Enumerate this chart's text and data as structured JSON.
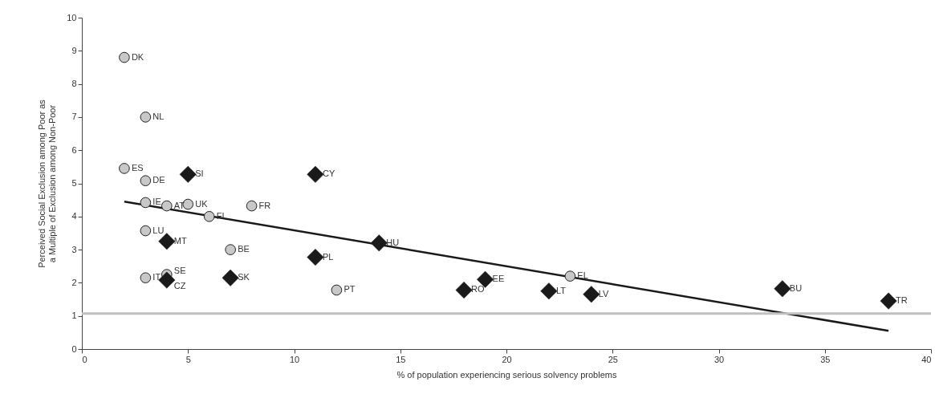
{
  "chart_data": {
    "type": "scatter",
    "xlabel": "% of population experiencing serious solvency problems",
    "ylabel": "Perceived Social Exclusion among Poor as a Multiple of Exclusion among Non-Poor",
    "xlim": [
      0,
      40
    ],
    "xticks": [
      0,
      5,
      10,
      15,
      20,
      25,
      30,
      35,
      40
    ],
    "ylim": [
      0,
      10
    ],
    "yticks": [
      0,
      1,
      2,
      3,
      4,
      5,
      6,
      7,
      8,
      9,
      10
    ],
    "grid": false,
    "series": [
      {
        "type": "line",
        "color": "#1a1a1a",
        "x": [
          2,
          38
        ],
        "values": [
          4.45,
          0.55
        ]
      },
      {
        "marker": "circle",
        "color": "#c8c8c8",
        "x": [
          2,
          3,
          2,
          3,
          3,
          4,
          5,
          6,
          8,
          3,
          7,
          3,
          4,
          12,
          23
        ],
        "values": [
          8.8,
          7.0,
          5.45,
          5.08,
          4.42,
          4.32,
          4.37,
          4.0,
          4.32,
          3.57,
          3.0,
          2.15,
          2.25,
          1.78,
          2.2
        ]
      },
      {
        "marker": "diamond",
        "color": "#1a1a1a",
        "x": [
          5,
          11,
          4,
          14,
          11,
          7,
          4,
          18,
          19,
          22,
          24,
          33,
          38
        ],
        "values": [
          5.27,
          5.27,
          3.25,
          3.2,
          2.77,
          2.15,
          2.08,
          1.78,
          2.1,
          1.75,
          1.65,
          1.82,
          1.45
        ]
      }
    ],
    "ref_lines": [
      {
        "axis": "y",
        "value": 1.07,
        "color": "#c0c0c0"
      }
    ],
    "annotations": [
      {
        "text": "DK",
        "x": 2,
        "y": 8.8
      },
      {
        "text": "NL",
        "x": 3,
        "y": 7.0
      },
      {
        "text": "ES",
        "x": 2,
        "y": 5.45
      },
      {
        "text": "DE",
        "x": 3,
        "y": 5.08
      },
      {
        "text": "IE",
        "x": 3,
        "y": 4.42
      },
      {
        "text": "AT",
        "x": 4,
        "y": 4.32
      },
      {
        "text": "UK",
        "x": 5,
        "y": 4.37
      },
      {
        "text": "FI",
        "x": 6,
        "y": 4.0
      },
      {
        "text": "FR",
        "x": 8,
        "y": 4.32
      },
      {
        "text": "LU",
        "x": 3,
        "y": 3.57
      },
      {
        "text": "BE",
        "x": 7,
        "y": 3.0
      },
      {
        "text": "IT",
        "x": 3,
        "y": 2.15
      },
      {
        "text": "SE",
        "x": 4,
        "y": 2.25
      },
      {
        "text": "PT",
        "x": 12,
        "y": 1.78
      },
      {
        "text": "EL",
        "x": 23,
        "y": 2.2
      },
      {
        "text": "SI",
        "x": 5,
        "y": 5.27
      },
      {
        "text": "CY",
        "x": 11,
        "y": 5.27
      },
      {
        "text": "MT",
        "x": 4,
        "y": 3.25
      },
      {
        "text": "HU",
        "x": 14,
        "y": 3.2
      },
      {
        "text": "PL",
        "x": 11,
        "y": 2.77
      },
      {
        "text": "SK",
        "x": 7,
        "y": 2.15
      },
      {
        "text": "CZ",
        "x": 4,
        "y": 2.08
      },
      {
        "text": "RO",
        "x": 18,
        "y": 1.78
      },
      {
        "text": "EE",
        "x": 19,
        "y": 2.1
      },
      {
        "text": "LT",
        "x": 22,
        "y": 1.75
      },
      {
        "text": "LV",
        "x": 24,
        "y": 1.65
      },
      {
        "text": "BU",
        "x": 33,
        "y": 1.82
      },
      {
        "text": "TR",
        "x": 38,
        "y": 1.45
      }
    ]
  }
}
